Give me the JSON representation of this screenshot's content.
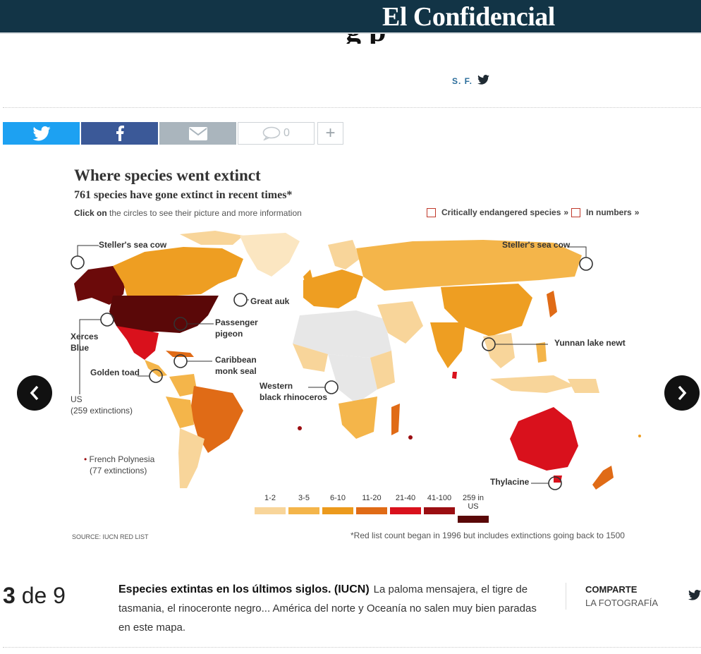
{
  "header": {
    "logo": "El Confidencial"
  },
  "article": {
    "title_fragment": "g   p",
    "author": "S. F."
  },
  "share_bar": {
    "comments_count": "0"
  },
  "infographic": {
    "title": "Where species went extinct",
    "subtitle": "761 species have gone extinct in recent times*",
    "click_bold": "Click on",
    "click_rest": " the circles to see their picture and more information",
    "option_1": "Critically endangered species",
    "option_2": "In numbers",
    "labels": {
      "stellers_left": "Steller's sea cow",
      "stellers_right": "Steller's sea cow",
      "great_auk": "Great auk",
      "passenger_pigeon_1": "Passenger",
      "passenger_pigeon_2": "pigeon",
      "xerces_1": "Xerces",
      "xerces_2": "Blue",
      "caribbean_1": "Caribbean",
      "caribbean_2": "monk seal",
      "golden_toad": "Golden toad",
      "us_1": "US",
      "us_2": "(259 extinctions)",
      "yunnan": "Yunnan lake newt",
      "western_1": "Western",
      "western_2": "black rhinoceros",
      "french_poly_1": "French Polynesia",
      "french_poly_2": "(77 extinctions)",
      "thylacine": "Thylacine"
    },
    "legend": [
      {
        "label": "1-2",
        "color": "#f8d59a"
      },
      {
        "label": "3-5",
        "color": "#f4b54a"
      },
      {
        "label": "6-10",
        "color": "#ec9a1c"
      },
      {
        "label": "11-20",
        "color": "#e06b16"
      },
      {
        "label": "21-40",
        "color": "#d9111c"
      },
      {
        "label": "41-100",
        "color": "#9b0e12"
      },
      {
        "label": "259 in US",
        "color": "#5a0808"
      }
    ],
    "source": "SOURCE: IUCN RED LIST",
    "note": "*Red list count began in 1996 but includes extinctions going back to 1500"
  },
  "gallery": {
    "current": "3",
    "of_text": " de 9",
    "caption_title": "Especies extintas en los últimos siglos. (IUCN)",
    "caption_text": "La paloma mensajera, el tigre de tasmania, el rinoceronte negro... América del norte y Oceanía no salen muy bien paradas en este mapa.",
    "share_label_1": "COMPARTE",
    "share_label_2": "LA FOTOGRAFÍA"
  },
  "colors": {
    "header_bg": "#123446",
    "twitter": "#1da1f2",
    "facebook": "#3b5998",
    "mail": "#aab5bd"
  }
}
